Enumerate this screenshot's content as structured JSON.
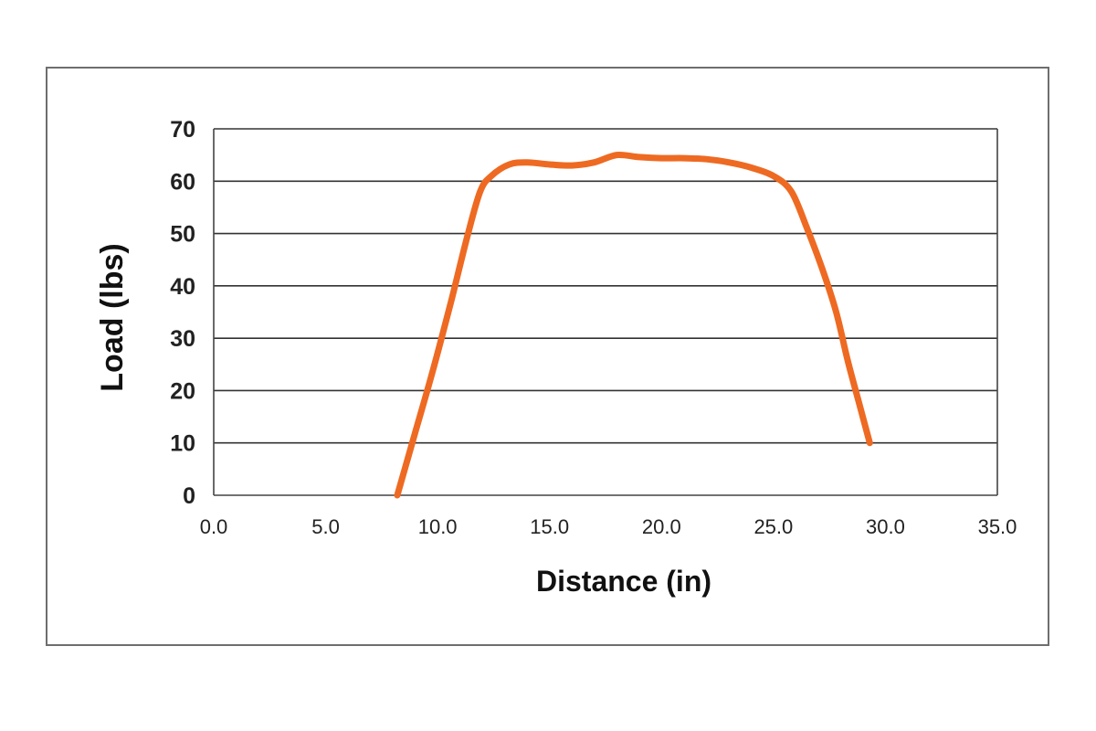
{
  "chart_data": {
    "type": "line",
    "title": "",
    "xlabel": "Distance (in)",
    "ylabel": "Load (lbs)",
    "xlim": [
      0,
      35
    ],
    "ylim": [
      0,
      70
    ],
    "x_ticks": [
      "0.0",
      "5.0",
      "10.0",
      "15.0",
      "20.0",
      "25.0",
      "30.0",
      "35.0"
    ],
    "y_ticks": [
      "0",
      "10",
      "20",
      "30",
      "40",
      "50",
      "60",
      "70"
    ],
    "grid": "horizontal",
    "legend": "none",
    "series": [
      {
        "color": "#ee6a22",
        "x": [
          8.2,
          9.0,
          9.8,
          10.6,
          11.3,
          11.9,
          12.4,
          13.2,
          14.0,
          15.0,
          16.0,
          17.0,
          18.0,
          19.0,
          20.0,
          21.0,
          22.0,
          23.0,
          24.0,
          25.0,
          25.8,
          26.5,
          27.2,
          27.8,
          28.3,
          28.8,
          29.3
        ],
        "y": [
          0,
          12,
          24,
          37,
          49,
          58,
          61,
          63.2,
          63.6,
          63.2,
          63.0,
          63.6,
          65.0,
          64.6,
          64.4,
          64.4,
          64.2,
          63.6,
          62.6,
          61.0,
          58.0,
          51.0,
          43.0,
          35.0,
          26.0,
          18.0,
          10.0
        ]
      }
    ]
  }
}
